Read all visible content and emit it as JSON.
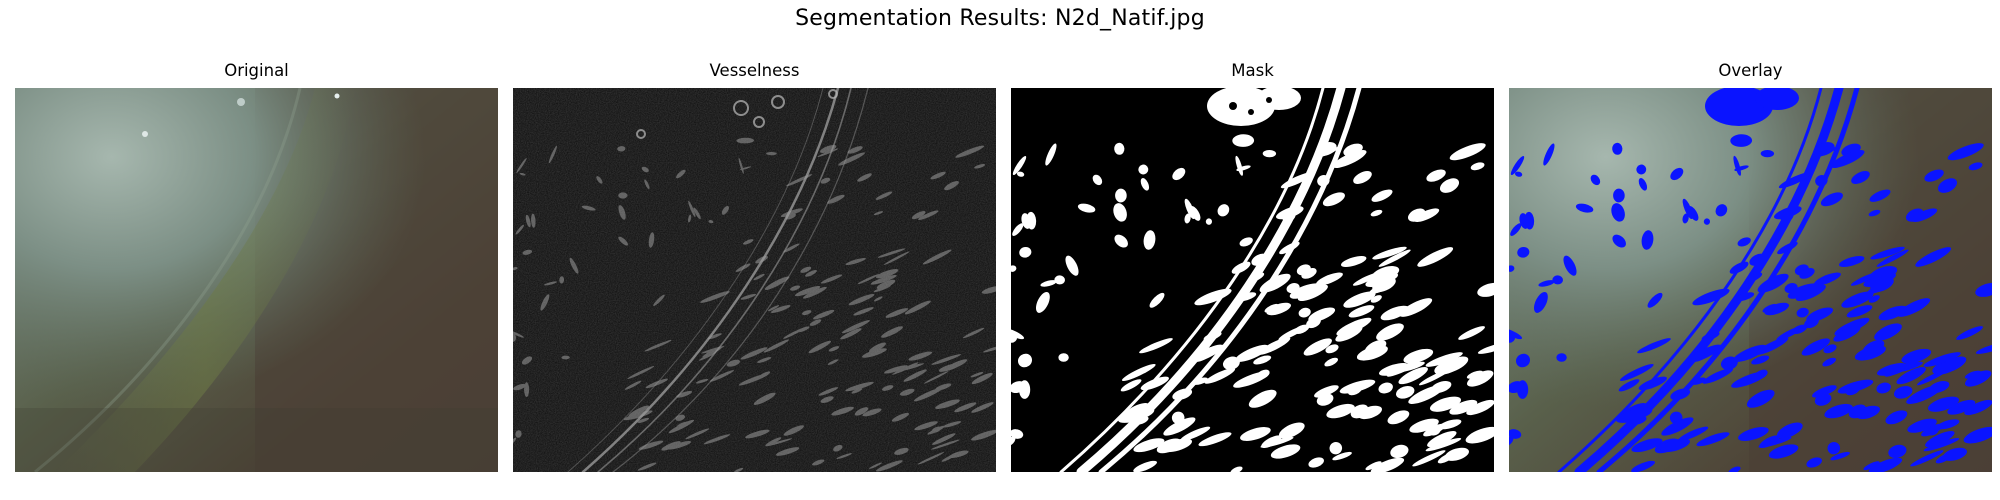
{
  "figure": {
    "title": "Segmentation Results: N2d_Natif.jpg"
  },
  "panels": [
    {
      "title": "Original"
    },
    {
      "title": "Vesselness"
    },
    {
      "title": "Mask"
    },
    {
      "title": "Overlay"
    }
  ],
  "colors": {
    "overlay": "#0a14ff",
    "mask": "#ffffff",
    "background": "#000000"
  }
}
